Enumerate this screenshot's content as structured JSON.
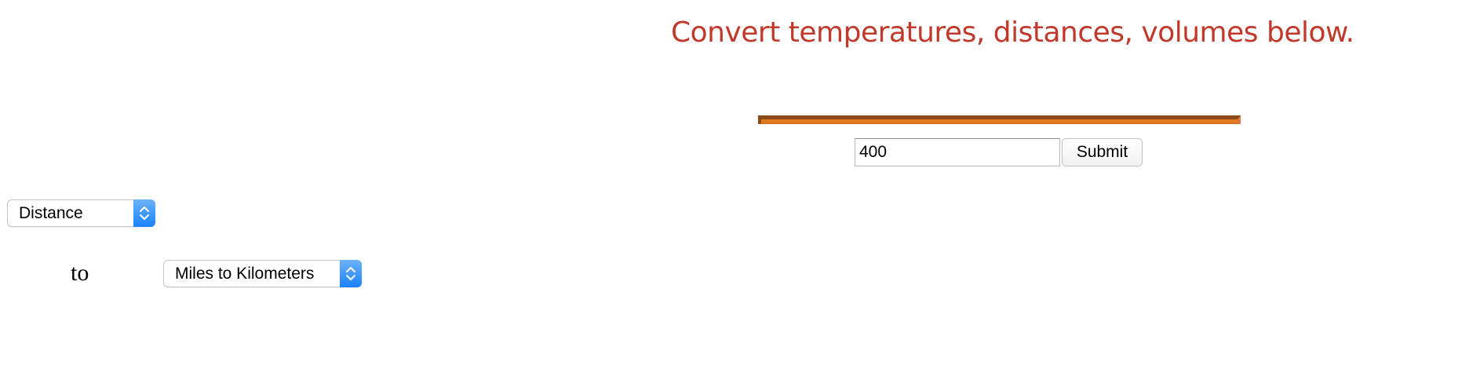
{
  "headline": {
    "text": "Convert temperatures, distances, volumes below.",
    "color": "#c0392b"
  },
  "converter": {
    "input_value": "400",
    "submit_label": "Submit",
    "bar_color": "#e07b22"
  },
  "category_select": {
    "selected": "Distance",
    "arrow_icon": "chevron-up-down-icon"
  },
  "to_label": "to",
  "unit_select": {
    "selected": "Miles to Kilometers",
    "arrow_icon": "chevron-up-down-icon"
  }
}
